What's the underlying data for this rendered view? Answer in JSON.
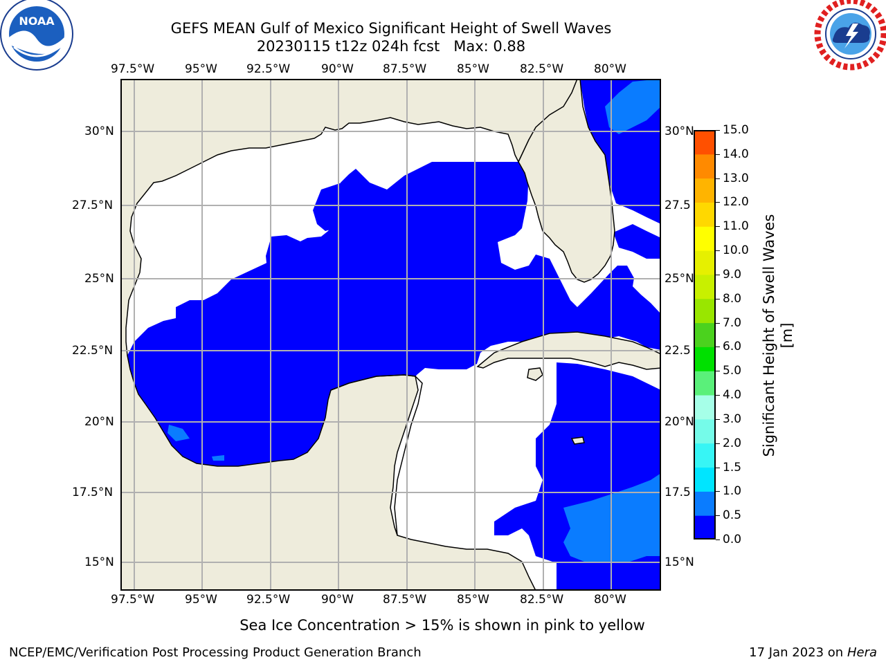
{
  "header": {
    "title_line1": "GEFS MEAN Gulf of Mexico Significant Height of Swell Waves",
    "title_line2": "20230115 t12z 024h fcst   Max: 0.88"
  },
  "logos": {
    "left": "NOAA",
    "right": "NATIONAL WEATHER SERVICE"
  },
  "map": {
    "lon_labels": [
      "97.5°W",
      "95°W",
      "92.5°W",
      "90°W",
      "87.5°W",
      "85°W",
      "82.5°W",
      "80°W"
    ],
    "lat_labels": [
      "30°N",
      "27.5°N",
      "25°N",
      "22.5°N",
      "20°N",
      "17.5°N",
      "15°N"
    ],
    "right_lat_labels": [
      "30°N",
      "27.5",
      "25°N",
      "22.5",
      "20°N",
      "17.5",
      "15°N"
    ],
    "colors": {
      "land": "#eeecdc",
      "swell_0_0_5": "#0000ff",
      "swell_0_5_1": "#0a7cff",
      "no_data": "#ffffff"
    }
  },
  "colorbar": {
    "label": "Significant Height of Swell Waves [m]",
    "ticks": [
      "0.0",
      "0.5",
      "1.0",
      "1.5",
      "2.0",
      "3.0",
      "4.0",
      "5.0",
      "6.0",
      "7.0",
      "8.0",
      "9.0",
      "10.0",
      "11.0",
      "12.0",
      "13.0",
      "14.0",
      "15.0"
    ],
    "colors": [
      "#0000ff",
      "#0a7cff",
      "#00e5ff",
      "#37f5f5",
      "#75fbe9",
      "#a6ffe8",
      "#5af07a",
      "#00e000",
      "#4bd21e",
      "#99e600",
      "#c8f000",
      "#e6f000",
      "#ffff00",
      "#ffd800",
      "#ffb400",
      "#ff8a00",
      "#ff5000",
      "#ff2000",
      "#ff0000"
    ]
  },
  "footer": {
    "note": "Sea Ice Concentration > 15% is shown in pink to yellow",
    "left": "NCEP/EMC/Verification Post Processing Product Generation Branch",
    "right_prefix": "17 Jan 2023 on ",
    "right_machine": "Hera"
  }
}
